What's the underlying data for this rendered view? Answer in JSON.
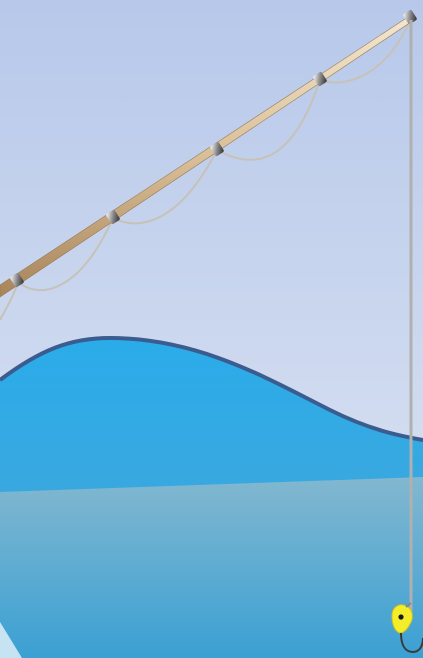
{
  "scene": {
    "description_free": true,
    "colors": {
      "sky_top": "#b7c8ea",
      "sky_bottom": "#dfe6f3",
      "wave_top": "#2aacea",
      "wave_bottom": "#4aa3d3",
      "wave_outline": "#3b5c8f",
      "lower_water_top": "#7fb4ce",
      "lower_water_bottom": "#3aa0d3",
      "rod_light": "#efe2c7",
      "rod_dark": "#b8946a",
      "line": "#b0b0b0",
      "lure": "#f4ee2a",
      "lure_eye": "#1a1a1a",
      "hook": "#3a3a3a"
    },
    "icons": {
      "rod": "fishing-rod-icon",
      "guides": "rod-guide-icon",
      "lure": "lure-icon",
      "hook": "hook-icon"
    }
  }
}
